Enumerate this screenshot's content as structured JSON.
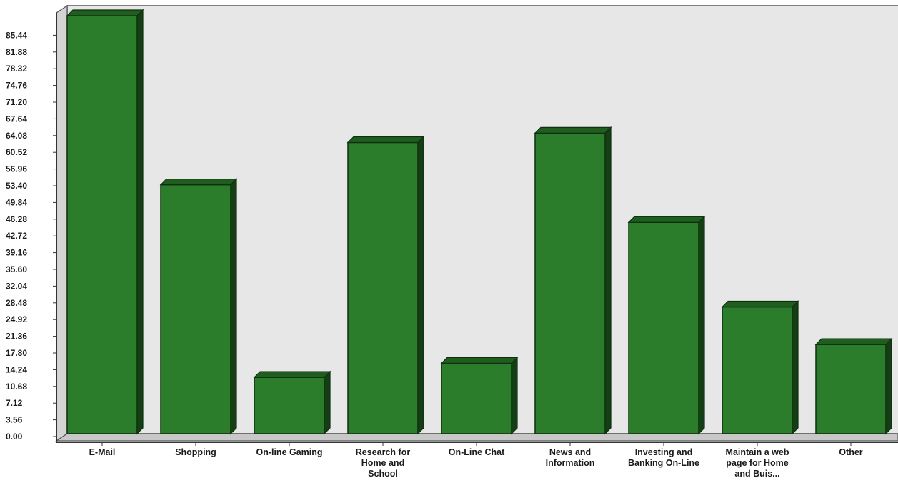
{
  "chart_data": {
    "type": "bar",
    "title": "",
    "xlabel": "",
    "ylabel": "",
    "ylim": [
      0,
      89
    ],
    "yticks": [
      "0.00",
      "3.56",
      "7.12",
      "10.68",
      "14.24",
      "17.80",
      "21.36",
      "24.92",
      "28.48",
      "32.04",
      "35.60",
      "39.16",
      "42.72",
      "46.28",
      "49.84",
      "53.40",
      "56.96",
      "60.52",
      "64.08",
      "67.64",
      "71.20",
      "74.76",
      "78.32",
      "81.88",
      "85.44"
    ],
    "categories": [
      [
        "E-Mail"
      ],
      [
        "Shopping"
      ],
      [
        "On-line Gaming"
      ],
      [
        "Research for",
        "Home and",
        "School"
      ],
      [
        "On-Line Chat"
      ],
      [
        "News and",
        "Information"
      ],
      [
        "Investing and",
        "Banking On-Line"
      ],
      [
        "Maintain a web",
        "page for Home",
        "and Buis..."
      ],
      [
        "Other"
      ]
    ],
    "values": [
      89.0,
      53.0,
      12.0,
      62.0,
      15.0,
      64.0,
      45.0,
      27.0,
      19.0
    ],
    "grid": false,
    "legend": "none",
    "colors": {
      "bar_face": "#2b7d2b",
      "bar_top": "#1f5e1f",
      "bar_side": "#143f14",
      "plot_bg": "#e7e7e7",
      "wall_side": "#d4d4d4",
      "floor": "#c8c8c8",
      "frame": "#555555"
    }
  }
}
